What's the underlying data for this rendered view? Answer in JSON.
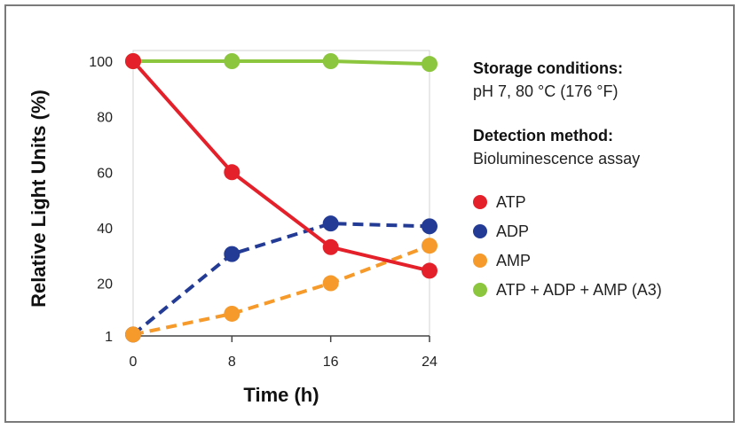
{
  "chart_data": {
    "type": "line",
    "xlabel": "Time (h)",
    "ylabel": "Relative Light Units (%)",
    "x": [
      0,
      8,
      16,
      24
    ],
    "y_ticks": [
      1,
      20,
      40,
      60,
      80,
      100
    ],
    "xlim": [
      0,
      24
    ],
    "ylim": [
      1,
      100
    ],
    "grid": false,
    "legend_position": "right",
    "series": [
      {
        "name": "ATP",
        "values": [
          100,
          60,
          33,
          24.5
        ],
        "color": "#e4202a",
        "line_style": "solid"
      },
      {
        "name": "ADP",
        "values": [
          1.5,
          30.5,
          41.5,
          40.5
        ],
        "color": "#233b95",
        "line_style": "dashed"
      },
      {
        "name": "AMP",
        "values": [
          1.5,
          9,
          20,
          33.5
        ],
        "color": "#f59a2b",
        "line_style": "dashed"
      },
      {
        "name": "ATP + ADP + AMP (A3)",
        "values": [
          100,
          100,
          100,
          99
        ],
        "color": "#8cc63f",
        "line_style": "solid"
      }
    ]
  },
  "notes": {
    "storage_heading": "Storage conditions:",
    "storage_value": "pH 7, 80 °C (176 °F)",
    "detection_heading": "Detection method:",
    "detection_value": "Bioluminescence assay"
  }
}
